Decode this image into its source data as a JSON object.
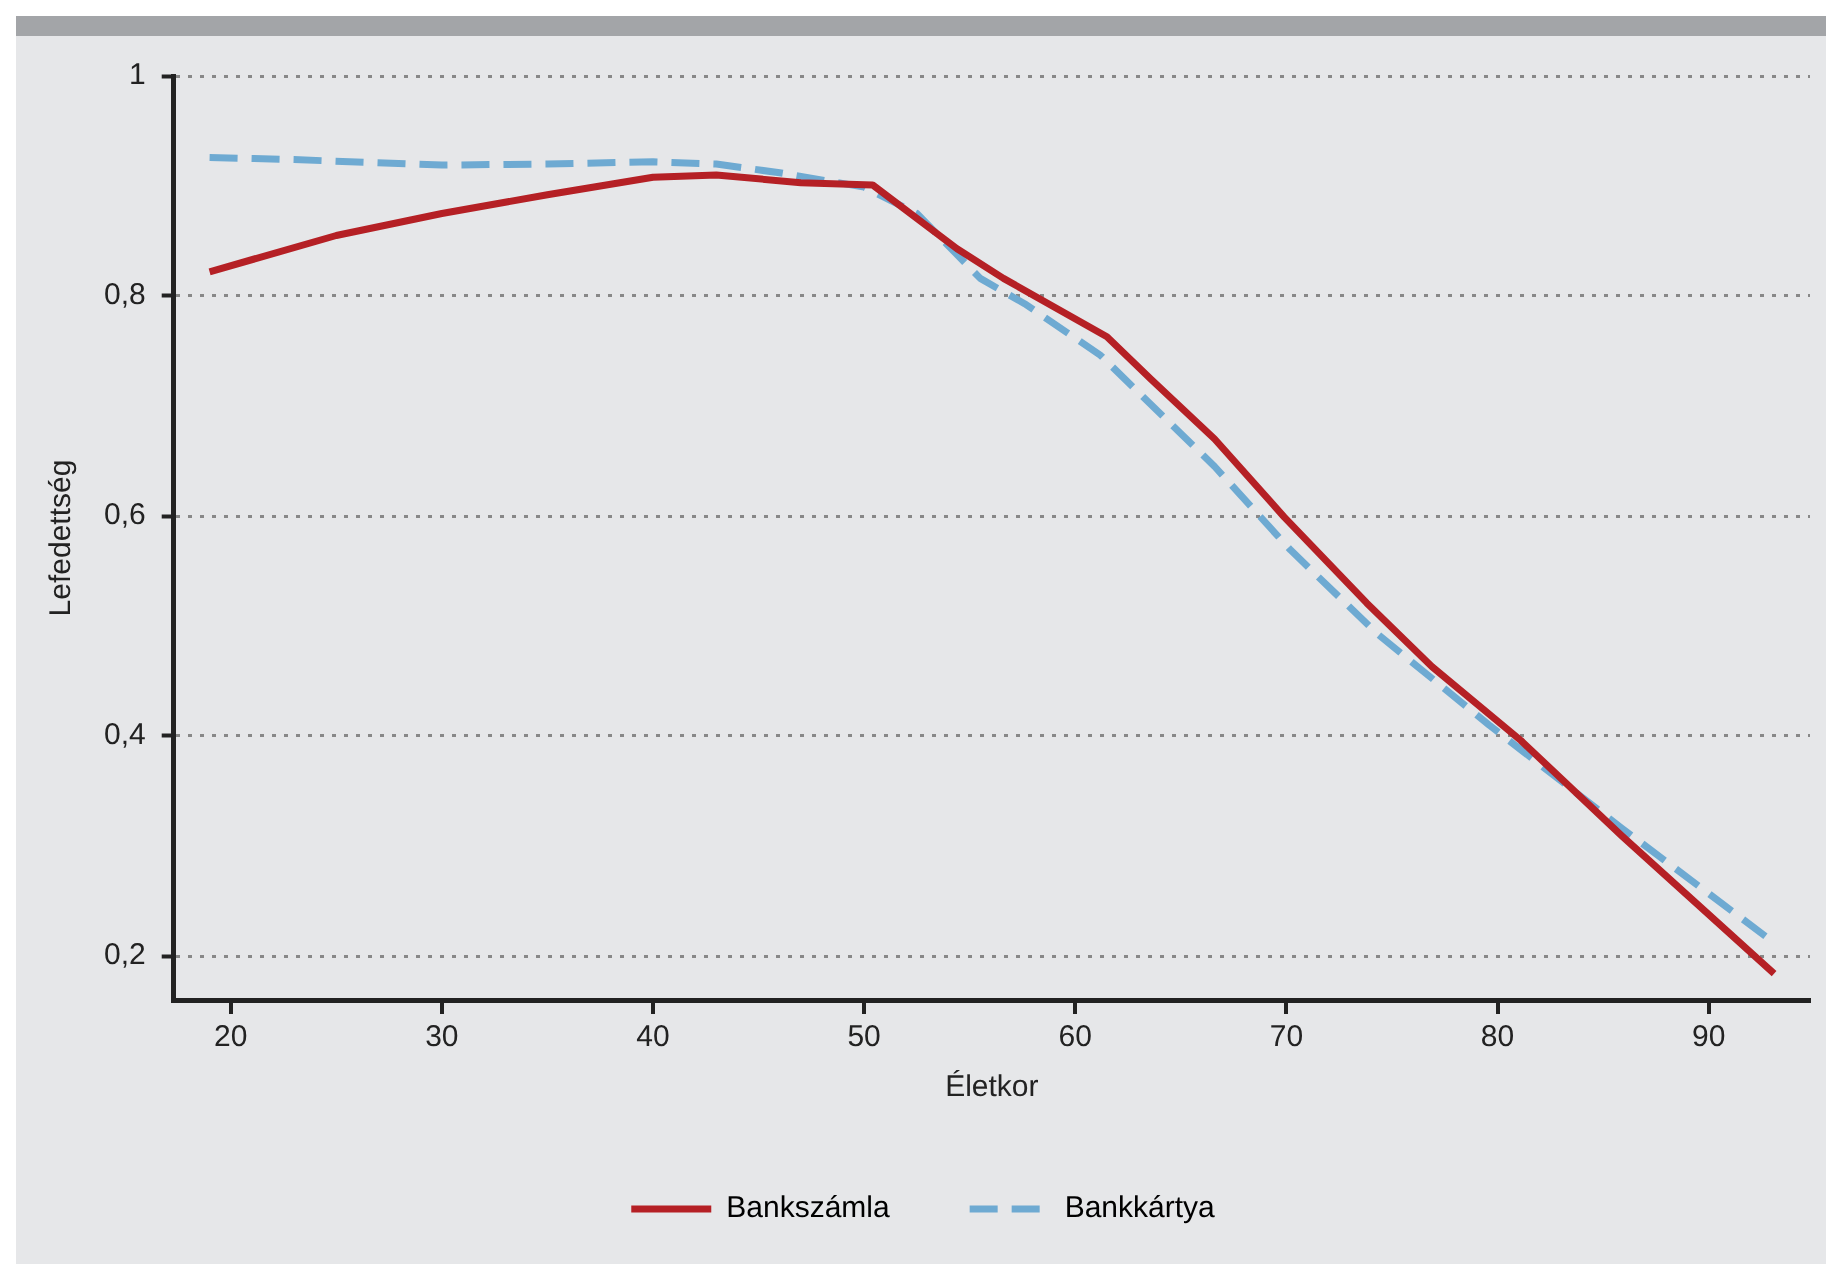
{
  "chart_data": {
    "type": "line",
    "xlabel": "Életkor",
    "ylabel": "Lefedettség",
    "xlim": [
      17.3,
      94.8
    ],
    "xticks": [
      20,
      30,
      40,
      50,
      60,
      70,
      80,
      90
    ],
    "ylim": [
      0.16,
      1
    ],
    "yticks": [
      {
        "value": 0.2,
        "label": "0,2"
      },
      {
        "value": 0.4,
        "label": "0,4"
      },
      {
        "value": 0.6,
        "label": "0,6"
      },
      {
        "value": 0.8,
        "label": "0,8"
      },
      {
        "value": 1,
        "label": "1"
      }
    ],
    "grid": "y",
    "legend": "bottom",
    "marker": "none",
    "series": [
      {
        "name": "Bankszámla",
        "color": "#b52025",
        "line_style": "solid",
        "x": [
          19,
          25,
          30,
          35,
          40,
          43,
          47,
          50.4,
          54.4,
          56.6,
          61.5,
          63.6,
          66.6,
          69.9,
          73.8,
          76.9,
          81.1,
          85.9,
          93.1
        ],
        "values": [
          0.822,
          0.855,
          0.875,
          0.892,
          0.908,
          0.91,
          0.903,
          0.901,
          0.843,
          0.816,
          0.763,
          0.724,
          0.67,
          0.599,
          0.521,
          0.463,
          0.396,
          0.309,
          0.184
        ]
      },
      {
        "name": "Bankkártya",
        "color": "#6eaad2",
        "line_style": "dashed",
        "x": [
          19,
          23,
          30,
          35,
          40,
          43,
          46,
          50,
          52.5,
          55.5,
          57.6,
          61.2,
          66.6,
          70.2,
          74.3,
          79.6,
          85.9,
          93.1
        ],
        "values": [
          0.926,
          0.924,
          0.919,
          0.92,
          0.922,
          0.92,
          0.912,
          0.899,
          0.875,
          0.816,
          0.793,
          0.746,
          0.645,
          0.569,
          0.493,
          0.41,
          0.316,
          0.212
        ]
      }
    ]
  }
}
